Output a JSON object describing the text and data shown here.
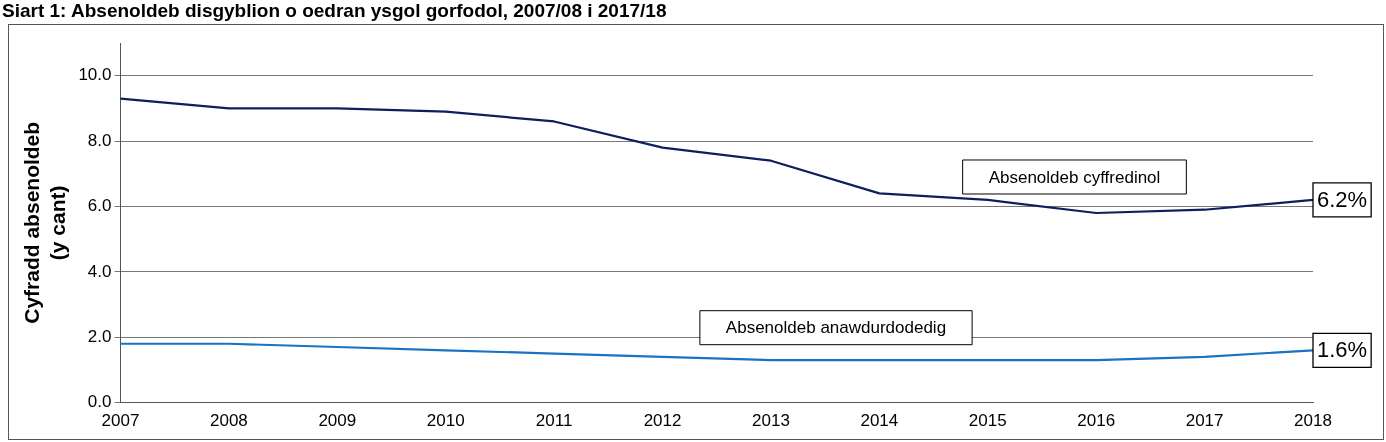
{
  "chart_data": {
    "type": "line",
    "title": "Siart 1: Absenoldeb disgyblion o oedran ysgol gorfodol, 2007/08 i 2017/18",
    "ylabel": "Cyfradd absenoldeb\n(y cant)",
    "categories": [
      "2007",
      "2008",
      "2009",
      "2010",
      "2011",
      "2012",
      "2013",
      "2014",
      "2015",
      "2016",
      "2017",
      "2018"
    ],
    "series": [
      {
        "name": "Absenoldeb cyffredinol",
        "color": "#0d1f5c",
        "values": [
          9.3,
          9.0,
          9.0,
          8.9,
          8.6,
          7.8,
          7.4,
          6.4,
          6.2,
          5.8,
          5.9,
          6.2
        ],
        "value_labels": [
          null,
          null,
          null,
          null,
          null,
          null,
          null,
          null,
          null,
          null,
          null,
          "6.2%"
        ]
      },
      {
        "name": "Absenoldeb anawdurdodedig",
        "color": "#1a72c4",
        "values": [
          1.8,
          1.8,
          1.7,
          1.6,
          1.5,
          1.4,
          1.3,
          1.3,
          1.3,
          1.3,
          1.4,
          1.6
        ],
        "value_labels": [
          null,
          null,
          null,
          null,
          null,
          null,
          null,
          null,
          null,
          null,
          null,
          "1.6%"
        ]
      }
    ],
    "ylim": [
      0,
      11
    ],
    "yticks": [
      {
        "value": 0,
        "label": "0.0"
      },
      {
        "value": 2,
        "label": "2.0"
      },
      {
        "value": 4,
        "label": "4.0"
      },
      {
        "value": 6,
        "label": "6.0"
      },
      {
        "value": 8,
        "label": "8.0"
      },
      {
        "value": 10,
        "label": "10.0"
      }
    ],
    "grid": "y",
    "legend": false,
    "marker": "none",
    "line_style": "solid"
  }
}
